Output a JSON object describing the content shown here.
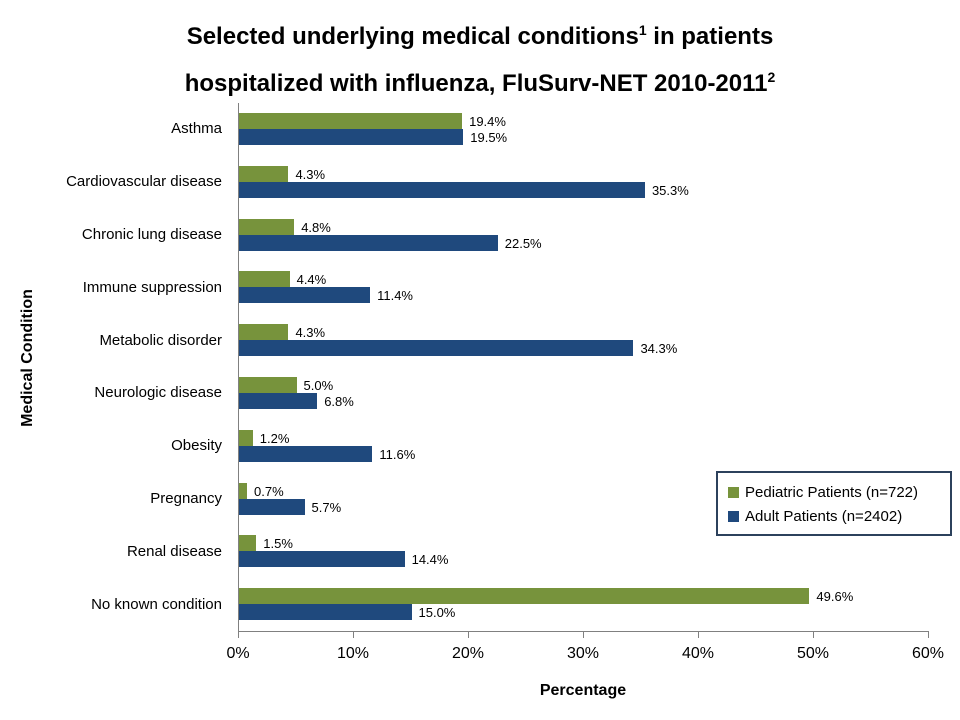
{
  "page": {
    "background": "#FFFFFF"
  },
  "title": {
    "line1_text": "Selected underlying medical conditions",
    "line1_sup": "1",
    "line1_rest": " in patients",
    "line2_text": "hospitalized with influenza, FluSurv-NET 2010-2011",
    "line2_sup": "2"
  },
  "chart_data": {
    "type": "bar",
    "orientation": "horizontal",
    "title": "Selected underlying medical conditions¹ in patients hospitalized with influenza, FluSurv-NET 2010-2011²",
    "categories": [
      "Asthma",
      "Cardiovascular disease",
      "Chronic lung disease",
      "Immune suppression",
      "Metabolic disorder",
      "Neurologic disease",
      "Obesity",
      "Pregnancy",
      "Renal disease",
      "No known condition"
    ],
    "series": [
      {
        "name": "Pediatric Patients (n=722)",
        "color": "#77933C",
        "values": [
          19.4,
          4.3,
          4.8,
          4.4,
          4.3,
          5.0,
          1.2,
          0.7,
          1.5,
          49.6
        ],
        "labels": [
          "19.4%",
          "4.3%",
          "4.8%",
          "4.4%",
          "4.3%",
          "5.0%",
          "1.2%",
          "0.7%",
          "1.5%",
          "49.6%"
        ]
      },
      {
        "name": "Adult Patients (n=2402)",
        "color": "#1F497D",
        "values": [
          19.5,
          35.3,
          22.5,
          11.4,
          34.3,
          6.8,
          11.6,
          5.7,
          14.4,
          15.0
        ],
        "labels": [
          "19.5%",
          "35.3%",
          "22.5%",
          "11.4%",
          "34.3%",
          "6.8%",
          "11.6%",
          "5.7%",
          "14.4%",
          "15.0%"
        ]
      }
    ],
    "xlabel": "Percentage",
    "ylabel": "Medical Condition",
    "xlim": [
      0,
      60
    ],
    "xticks": [
      "0%",
      "10%",
      "20%",
      "30%",
      "40%",
      "50%",
      "60%"
    ],
    "grid": false,
    "legend_position": "middle-right",
    "axis_color": "#808080",
    "legend_border_color": "#2C415C",
    "data_labels": true
  }
}
